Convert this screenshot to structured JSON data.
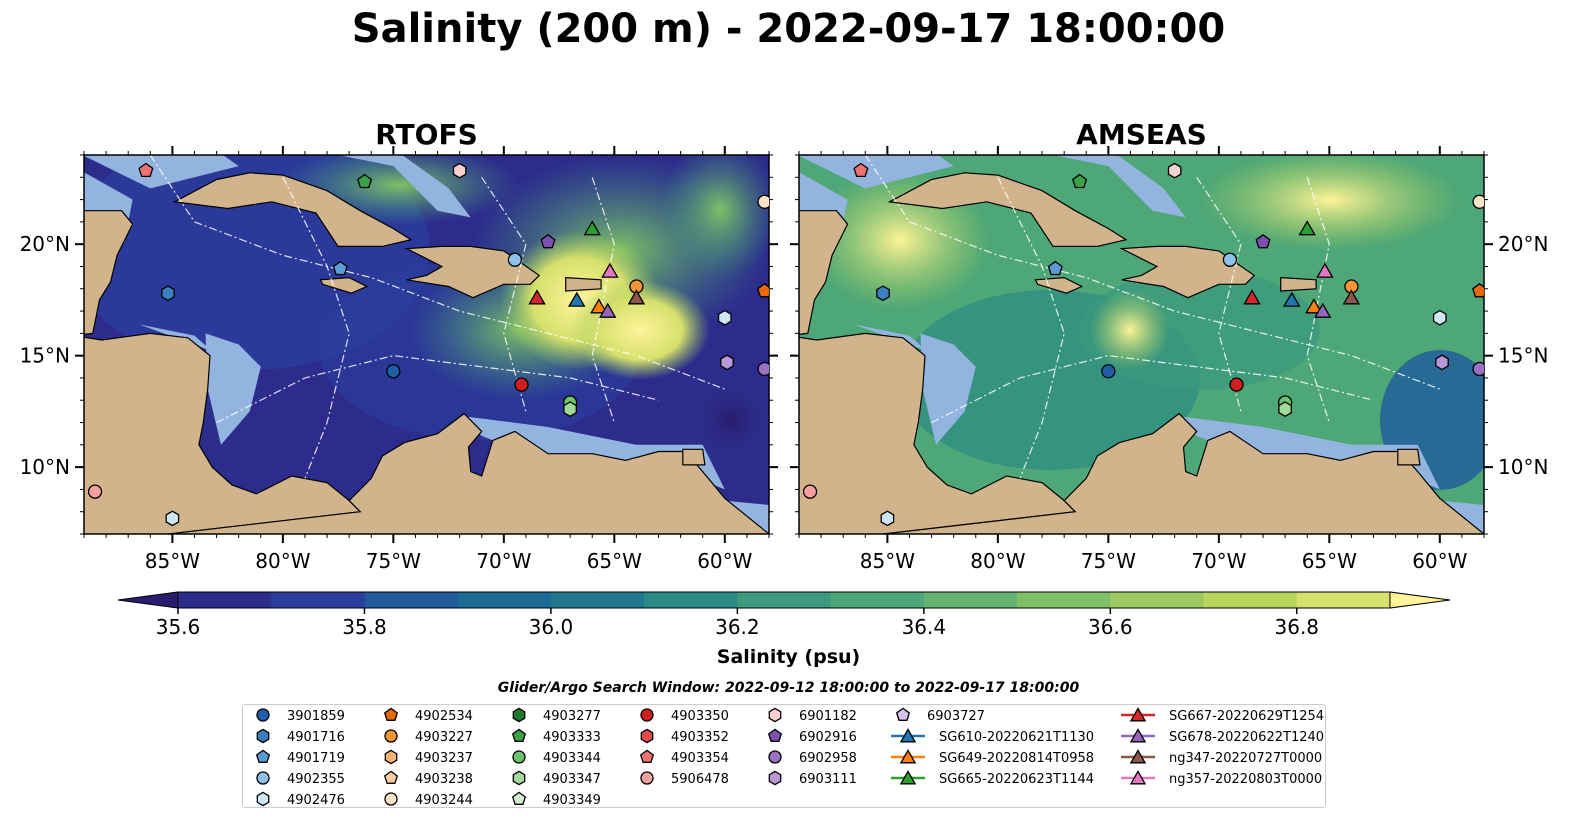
{
  "title": "Salinity (200 m) - 2022-09-17 18:00:00",
  "panels": [
    {
      "title": "RTOFS",
      "x": 84,
      "w": 685
    },
    {
      "title": "AMSEAS",
      "x": 799,
      "w": 685
    }
  ],
  "map_extent": {
    "lon": [
      -89,
      -58
    ],
    "lat": [
      7,
      24
    ]
  },
  "lon_ticks": [
    {
      "v": -85,
      "label": "85°W"
    },
    {
      "v": -80,
      "label": "80°W"
    },
    {
      "v": -75,
      "label": "75°W"
    },
    {
      "v": -70,
      "label": "70°W"
    },
    {
      "v": -65,
      "label": "65°W"
    },
    {
      "v": -60,
      "label": "60°W"
    }
  ],
  "lat_ticks": [
    {
      "v": 20,
      "label": "20°N"
    },
    {
      "v": 15,
      "label": "15°N"
    },
    {
      "v": 10,
      "label": "10°N"
    }
  ],
  "colorbar": {
    "label": "Salinity (psu)",
    "ticks": [
      "35.6",
      "35.8",
      "36.0",
      "36.2",
      "36.4",
      "36.6",
      "36.8"
    ],
    "colors": [
      "#2a1c6e",
      "#2d2b8c",
      "#2a3f9e",
      "#1f5a9c",
      "#1c6b95",
      "#217a8c",
      "#2c8a85",
      "#3b997e",
      "#4ea777",
      "#66b36f",
      "#80bf66",
      "#9bcb5e",
      "#b8d65b",
      "#d6e06c",
      "#f4ee8e"
    ],
    "under": "#2a1c6e",
    "over": "#fff49a"
  },
  "legend": {
    "title": "Glider/Argo Search Window: 2022-09-12 18:00:00 to 2022-09-17 18:00:00",
    "columns": [
      [
        {
          "label": "3901859",
          "shape": "circle",
          "color": "#1f5fa8"
        },
        {
          "label": "4901716",
          "shape": "hexagon",
          "color": "#3a7fc0"
        },
        {
          "label": "4901719",
          "shape": "pentagon",
          "color": "#5a9bd6"
        },
        {
          "label": "4902355",
          "shape": "circle",
          "color": "#8fc0e8"
        },
        {
          "label": "4902476",
          "shape": "hexagon",
          "color": "#cfe6f7"
        }
      ],
      [
        {
          "label": "4902534",
          "shape": "pentagon",
          "color": "#e8690c"
        },
        {
          "label": "4903227",
          "shape": "circle",
          "color": "#f79433"
        },
        {
          "label": "4903237",
          "shape": "hexagon",
          "color": "#f9b36e"
        },
        {
          "label": "4903238",
          "shape": "pentagon",
          "color": "#fbcda0"
        },
        {
          "label": "4903244",
          "shape": "circle",
          "color": "#fde4c8"
        }
      ],
      [
        {
          "label": "4903277",
          "shape": "hexagon",
          "color": "#1b7a2a"
        },
        {
          "label": "4903333",
          "shape": "pentagon",
          "color": "#3ca046"
        },
        {
          "label": "4903344",
          "shape": "circle",
          "color": "#6cc36b"
        },
        {
          "label": "4903347",
          "shape": "hexagon",
          "color": "#a2da9b"
        },
        {
          "label": "4903349",
          "shape": "pentagon",
          "color": "#d4f0cf"
        }
      ],
      [
        {
          "label": "4903350",
          "shape": "circle",
          "color": "#d11f1f"
        },
        {
          "label": "4903352",
          "shape": "hexagon",
          "color": "#e34a4a"
        },
        {
          "label": "4903354",
          "shape": "pentagon",
          "color": "#ef7272"
        },
        {
          "label": "5906478",
          "shape": "circle",
          "color": "#f7a0a0"
        }
      ],
      [
        {
          "label": "6901182",
          "shape": "hexagon",
          "color": "#fbd0d0"
        },
        {
          "label": "6902916",
          "shape": "pentagon",
          "color": "#7e4fb0"
        },
        {
          "label": "6902958",
          "shape": "circle",
          "color": "#9a71c4"
        },
        {
          "label": "6903111",
          "shape": "hexagon",
          "color": "#b898d6"
        }
      ],
      [
        {
          "label": "6903727",
          "shape": "pentagon",
          "color": "#d7c2ea"
        },
        {
          "label": "SG610-20220621T1130",
          "shape": "triangle-line",
          "color": "#1f77b4"
        },
        {
          "label": "SG649-20220814T0958",
          "shape": "triangle-line",
          "color": "#ff7f0e"
        },
        {
          "label": "SG665-20220623T1144",
          "shape": "triangle-line",
          "color": "#2ca02c"
        }
      ],
      [
        {
          "label": "SG667-20220629T1254",
          "shape": "triangle-line",
          "color": "#d62728"
        },
        {
          "label": "SG678-20220622T1240",
          "shape": "triangle-line",
          "color": "#9467bd"
        },
        {
          "label": "ng347-20220727T0000",
          "shape": "triangle-line",
          "color": "#8c564b"
        },
        {
          "label": "ng357-20220803T0000",
          "shape": "triangle-line",
          "color": "#e377c2"
        }
      ]
    ]
  },
  "markers": [
    {
      "lon": -86.2,
      "lat": 23.3,
      "shape": "pentagon",
      "color": "#ef7272"
    },
    {
      "lon": -85.2,
      "lat": 17.8,
      "shape": "hexagon",
      "color": "#3a7fc0"
    },
    {
      "lon": -77.4,
      "lat": 18.9,
      "shape": "pentagon",
      "color": "#5a9bd6"
    },
    {
      "lon": -72.0,
      "lat": 23.3,
      "shape": "hexagon",
      "color": "#fbd0d0"
    },
    {
      "lon": -76.3,
      "lat": 22.8,
      "shape": "pentagon",
      "color": "#3ca046"
    },
    {
      "lon": -69.5,
      "lat": 19.3,
      "shape": "circle",
      "color": "#8fc0e8"
    },
    {
      "lon": -68.0,
      "lat": 20.1,
      "shape": "pentagon",
      "color": "#7e4fb0"
    },
    {
      "lon": -75.0,
      "lat": 14.3,
      "shape": "circle",
      "color": "#1f5fa8"
    },
    {
      "lon": -69.2,
      "lat": 13.7,
      "shape": "circle",
      "color": "#d11f1f"
    },
    {
      "lon": -67.0,
      "lat": 12.9,
      "shape": "circle",
      "color": "#6cc36b"
    },
    {
      "lon": -67.0,
      "lat": 12.6,
      "shape": "hexagon",
      "color": "#a2da9b"
    },
    {
      "lon": -64.0,
      "lat": 18.1,
      "shape": "circle",
      "color": "#f79433"
    },
    {
      "lon": -60.0,
      "lat": 16.7,
      "shape": "hexagon",
      "color": "#cfe6f7"
    },
    {
      "lon": -59.9,
      "lat": 14.7,
      "shape": "hexagon",
      "color": "#b898d6"
    },
    {
      "lon": -58.2,
      "lat": 21.9,
      "shape": "circle",
      "color": "#fde4c8"
    },
    {
      "lon": -58.2,
      "lat": 17.9,
      "shape": "pentagon",
      "color": "#e8690c"
    },
    {
      "lon": -58.2,
      "lat": 14.4,
      "shape": "circle",
      "color": "#9a71c4"
    },
    {
      "lon": -88.5,
      "lat": 8.9,
      "shape": "circle",
      "color": "#f7a0a0"
    },
    {
      "lon": -85.0,
      "lat": 7.7,
      "shape": "hexagon",
      "color": "#cfe6f7"
    },
    {
      "lon": -68.5,
      "lat": 17.6,
      "shape": "triangle",
      "color": "#d62728"
    },
    {
      "lon": -66.7,
      "lat": 17.5,
      "shape": "triangle",
      "color": "#1f77b4"
    },
    {
      "lon": -65.7,
      "lat": 17.2,
      "shape": "triangle",
      "color": "#ff7f0e"
    },
    {
      "lon": -65.3,
      "lat": 17.0,
      "shape": "triangle",
      "color": "#9467bd"
    },
    {
      "lon": -64.0,
      "lat": 17.6,
      "shape": "triangle",
      "color": "#8c564b"
    },
    {
      "lon": -65.2,
      "lat": 18.8,
      "shape": "triangle",
      "color": "#e377c2"
    },
    {
      "lon": -66.0,
      "lat": 20.7,
      "shape": "triangle",
      "color": "#2ca02c"
    }
  ],
  "land_color": "#d2b48c",
  "shelf_color": "#94b4e0"
}
